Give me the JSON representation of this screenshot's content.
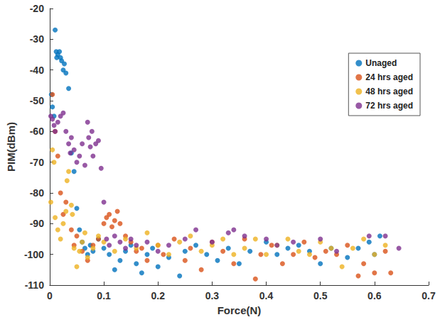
{
  "chart_data": {
    "type": "scatter",
    "x_label": "Force(N)",
    "y_label": "PIM(dBm)",
    "xlim": [
      0,
      0.7
    ],
    "xticks": [
      0,
      0.1,
      0.2,
      0.3,
      0.4,
      0.5,
      0.6,
      0.7
    ],
    "ylim": [
      -110,
      -20
    ],
    "yticks": [
      -110,
      -100,
      -90,
      -80,
      -70,
      -60,
      -50,
      -40,
      -30,
      -20
    ],
    "grid": false,
    "legend": "upper right",
    "marker": "circle",
    "series": [
      {
        "name": "Unaged",
        "color": "#0072bd",
        "x": [
          0.01,
          0.012,
          0.015,
          0.018,
          0.02,
          0.022,
          0.013,
          0.025,
          0.03,
          0.027,
          0.035,
          0.005,
          0.008,
          0.003,
          0.04,
          0.045,
          0.05,
          0.055,
          0.06,
          0.065,
          0.07,
          0.075,
          0.08,
          0.09,
          0.1,
          0.11,
          0.12,
          0.13,
          0.14,
          0.15,
          0.16,
          0.17,
          0.18,
          0.19,
          0.2,
          0.22,
          0.24,
          0.25,
          0.27,
          0.29,
          0.31,
          0.33,
          0.35,
          0.37,
          0.4,
          0.42,
          0.44,
          0.46,
          0.48,
          0.5,
          0.52,
          0.55,
          0.57,
          0.59,
          0.6,
          0.61
        ],
        "values": [
          -27,
          -34,
          -35,
          -34,
          -36,
          -37,
          -36,
          -40,
          -41,
          -38,
          -46,
          -52,
          -55,
          -48,
          -67,
          -73,
          -85,
          -92,
          -96,
          -98,
          -100,
          -97,
          -99,
          -95,
          -98,
          -100,
          -105,
          -102,
          -99,
          -97,
          -103,
          -106,
          -100,
          -98,
          -104,
          -101,
          -107,
          -99,
          -97,
          -100,
          -102,
          -98,
          -103,
          -99,
          -96,
          -100,
          -98,
          -97,
          -99,
          -103,
          -98,
          -101,
          -98,
          -96,
          -100,
          -94
        ]
      },
      {
        "name": "24 hrs aged",
        "color": "#d95319",
        "x": [
          0.005,
          0.01,
          0.015,
          0.02,
          0.025,
          0.03,
          0.04,
          0.045,
          0.05,
          0.06,
          0.07,
          0.08,
          0.09,
          0.1,
          0.105,
          0.11,
          0.115,
          0.12,
          0.125,
          0.13,
          0.14,
          0.15,
          0.16,
          0.17,
          0.18,
          0.2,
          0.21,
          0.23,
          0.25,
          0.26,
          0.28,
          0.3,
          0.32,
          0.34,
          0.36,
          0.38,
          0.39,
          0.41,
          0.43,
          0.45,
          0.47,
          0.49,
          0.51,
          0.53,
          0.55,
          0.57,
          0.58,
          0.6,
          0.62,
          0.63
        ],
        "values": [
          -48,
          -60,
          -68,
          -80,
          -87,
          -83,
          -92,
          -97,
          -94,
          -99,
          -102,
          -97,
          -95,
          -90,
          -88,
          -87,
          -91,
          -89,
          -86,
          -90,
          -94,
          -96,
          -99,
          -98,
          -102,
          -97,
          -100,
          -95,
          -102,
          -98,
          -105,
          -96,
          -99,
          -103,
          -95,
          -108,
          -100,
          -97,
          -103,
          -100,
          -96,
          -101,
          -99,
          -100,
          -97,
          -107,
          -103,
          -106,
          -99,
          -106
        ]
      },
      {
        "name": "48 hrs aged",
        "color": "#edb120",
        "x": [
          0.002,
          0.005,
          0.008,
          0.01,
          0.015,
          0.02,
          0.025,
          0.03,
          0.032,
          0.035,
          0.04,
          0.042,
          0.045,
          0.05,
          0.055,
          0.06,
          0.065,
          0.07,
          0.08,
          0.09,
          0.1,
          0.12,
          0.14,
          0.16,
          0.18,
          0.2,
          0.22,
          0.24,
          0.26,
          0.28,
          0.3,
          0.32,
          0.34,
          0.36,
          0.38,
          0.4,
          0.42,
          0.44,
          0.46,
          0.48,
          0.5,
          0.52,
          0.54,
          0.56,
          0.58,
          0.6,
          0.62
        ],
        "values": [
          -83,
          -66,
          -70,
          -88,
          -92,
          -95,
          -90,
          -86,
          -76,
          -73,
          -84,
          -87,
          -98,
          -104,
          -99,
          -96,
          -93,
          -101,
          -98,
          -94,
          -96,
          -99,
          -95,
          -98,
          -93,
          -97,
          -100,
          -96,
          -94,
          -99,
          -97,
          -95,
          -100,
          -98,
          -95,
          -100,
          -97,
          -95,
          -99,
          -100,
          -96,
          -98,
          -104,
          -98,
          -95,
          -100,
          -97
        ]
      },
      {
        "name": "72 hrs aged",
        "color": "#7e2f8e",
        "x": [
          0.002,
          0.005,
          0.008,
          0.01,
          0.015,
          0.02,
          0.025,
          0.03,
          0.035,
          0.038,
          0.04,
          0.045,
          0.05,
          0.055,
          0.06,
          0.065,
          0.07,
          0.072,
          0.075,
          0.078,
          0.08,
          0.085,
          0.09,
          0.095,
          0.1,
          0.105,
          0.11,
          0.12,
          0.13,
          0.14,
          0.15,
          0.16,
          0.18,
          0.2,
          0.22,
          0.25,
          0.27,
          0.3,
          0.33,
          0.34,
          0.36,
          0.4,
          0.42,
          0.45,
          0.5,
          0.53,
          0.59,
          0.62,
          0.645
        ],
        "values": [
          -55,
          -56,
          -58,
          -60,
          -57,
          -55,
          -54,
          -60,
          -64,
          -67,
          -62,
          -66,
          -70,
          -68,
          -64,
          -71,
          -57,
          -62,
          -65,
          -60,
          -68,
          -64,
          -63,
          -72,
          -83,
          -95,
          -97,
          -94,
          -96,
          -98,
          -95,
          -97,
          -96,
          -99,
          -97,
          -95,
          -92,
          -96,
          -93,
          -92,
          -94,
          -95,
          -97,
          -96,
          -95,
          -99,
          -94,
          -94,
          -98
        ]
      }
    ]
  }
}
